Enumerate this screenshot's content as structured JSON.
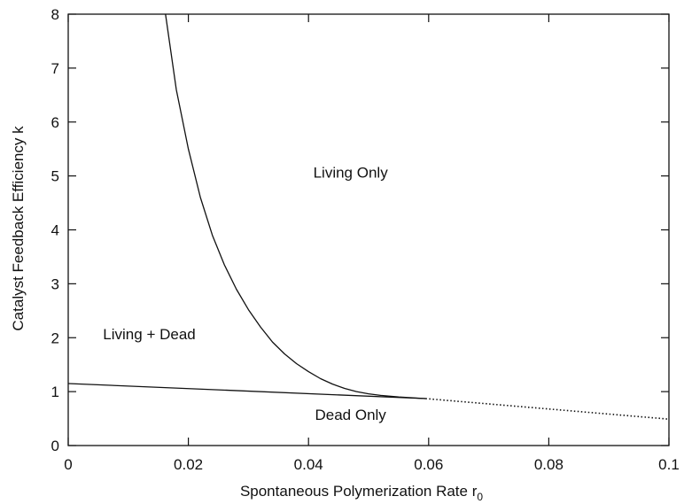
{
  "chart_data": {
    "type": "line",
    "xlabel": "Spontaneous Polymerization Rate r",
    "xlabel_subscript": "0",
    "ylabel": "Catalyst Feedback Efficiency k",
    "xlim": [
      0,
      0.1
    ],
    "ylim": [
      0,
      8
    ],
    "x_ticks": [
      0,
      0.02,
      0.04,
      0.06,
      0.08,
      0.1
    ],
    "x_tick_labels": [
      "0",
      "0.02",
      "0.04",
      "0.06",
      "0.08",
      "0.1"
    ],
    "y_ticks": [
      0,
      1,
      2,
      3,
      4,
      5,
      6,
      7,
      8
    ],
    "y_tick_labels": [
      "0",
      "1",
      "2",
      "3",
      "4",
      "5",
      "6",
      "7",
      "8"
    ],
    "grid": false,
    "series": [
      {
        "style": "solid",
        "points": [
          [
            0.0162,
            8.0
          ],
          [
            0.018,
            6.6
          ],
          [
            0.02,
            5.5
          ],
          [
            0.022,
            4.6
          ],
          [
            0.024,
            3.9
          ],
          [
            0.026,
            3.35
          ],
          [
            0.028,
            2.9
          ],
          [
            0.03,
            2.52
          ],
          [
            0.032,
            2.2
          ],
          [
            0.034,
            1.92
          ],
          [
            0.036,
            1.7
          ],
          [
            0.038,
            1.52
          ],
          [
            0.04,
            1.37
          ],
          [
            0.042,
            1.24
          ],
          [
            0.044,
            1.14
          ],
          [
            0.046,
            1.06
          ],
          [
            0.048,
            1.0
          ],
          [
            0.05,
            0.96
          ],
          [
            0.052,
            0.93
          ],
          [
            0.055,
            0.9
          ],
          [
            0.0595,
            0.87
          ]
        ]
      },
      {
        "style": "solid",
        "points": [
          [
            0,
            1.15
          ],
          [
            0.0595,
            0.87
          ]
        ]
      },
      {
        "style": "dotted",
        "points": [
          [
            0.0595,
            0.87
          ],
          [
            0.1,
            0.49
          ]
        ]
      }
    ],
    "annotations": [
      {
        "text": "Living Only",
        "x": 0.047,
        "y": 4.97
      },
      {
        "text": "Living + Dead",
        "x": 0.0135,
        "y": 1.97
      },
      {
        "text": "Dead Only",
        "x": 0.047,
        "y": 0.48
      }
    ]
  }
}
